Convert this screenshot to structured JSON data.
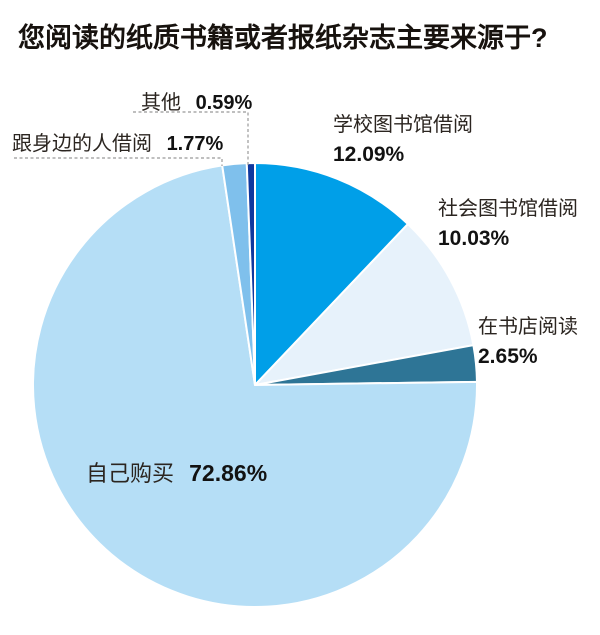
{
  "chart_data": {
    "type": "pie",
    "title": "您阅读的纸质书籍或者报纸杂志主要来源于?",
    "start_angle_deg": 0,
    "direction": "clockwise",
    "legend": "none",
    "leader_line_color": "#999999",
    "slices": [
      {
        "id": "school-library",
        "label": "学校图书馆借阅",
        "value": 12.09,
        "pct_text": "12.09%",
        "color": "#009fe8"
      },
      {
        "id": "public-library",
        "label": "社会图书馆借阅",
        "value": 10.03,
        "pct_text": "10.03%",
        "color": "#e7f2fb"
      },
      {
        "id": "bookstore",
        "label": "在书店阅读",
        "value": 2.65,
        "pct_text": "2.65%",
        "color": "#2e7596"
      },
      {
        "id": "self-purchase",
        "label": "自己购买",
        "value": 72.86,
        "pct_text": "72.86%",
        "color": "#b5def6"
      },
      {
        "id": "borrow-from-others",
        "label": "跟身边的人借阅",
        "value": 1.77,
        "pct_text": "1.77%",
        "color": "#7fc0ec"
      },
      {
        "id": "other",
        "label": "其他",
        "value": 0.59,
        "pct_text": "0.59%",
        "color": "#10389e"
      }
    ]
  }
}
